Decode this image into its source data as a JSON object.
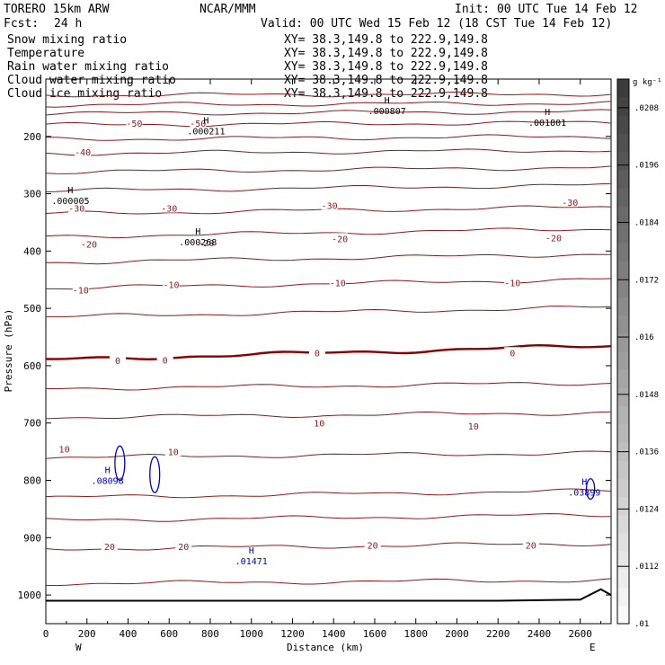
{
  "header": {
    "model": "TORERO   15km ARW",
    "org": "NCAR/MMM",
    "init": "Init: 00 UTC Tue 14 Feb 12",
    "fcst_label": "Fcst:",
    "fcst_value": "24 h",
    "valid": "Valid: 00 UTC Wed 15 Feb 12 (18 CST Tue 14 Feb 12)"
  },
  "fields": [
    {
      "name": "Snow mixing ratio",
      "xy": "XY=  38.3,149.8 to 222.9,149.8",
      "color": "#000000"
    },
    {
      "name": "Temperature",
      "xy": "XY=  38.3,149.8 to 222.9,149.8",
      "color": "#b00000"
    },
    {
      "name": "Rain water mixing ratio",
      "xy": "XY=  38.3,149.8 to 222.9,149.8",
      "color": "#d40000"
    },
    {
      "name": "Cloud water mixing ratio",
      "xy": "XY=  38.3,149.8 to 222.9,149.8",
      "color": "#0000c8"
    },
    {
      "name": "Cloud ice mixing ratio",
      "xy": "XY=  38.3,149.8 to 222.9,149.8",
      "color": "#000000"
    }
  ],
  "chart_data": {
    "type": "contour cross-section",
    "xlabel": "Distance (km)",
    "ylabel": "Pressure (hPa)",
    "xlim": [
      0,
      2750
    ],
    "ylim": [
      1050,
      100
    ],
    "x_ticks": [
      "0",
      "200",
      "400",
      "600",
      "800",
      "1000",
      "1200",
      "1400",
      "1600",
      "1800",
      "2000",
      "2200",
      "2400",
      "2600"
    ],
    "x_tick_values": [
      0,
      200,
      400,
      600,
      800,
      1000,
      1200,
      1400,
      1600,
      1800,
      2000,
      2200,
      2400,
      2600
    ],
    "y_ticks": [
      "200",
      "300",
      "400",
      "500",
      "600",
      "700",
      "800",
      "900",
      "1000"
    ],
    "y_tick_values": [
      200,
      300,
      400,
      500,
      600,
      700,
      800,
      900,
      1000
    ],
    "endpoints": {
      "left": "W",
      "right": "E"
    },
    "temperature_contours": [
      {
        "p": 128,
        "slope": -2
      },
      {
        "p": 145,
        "slope": -3
      },
      {
        "p": 160,
        "slope": -3
      },
      {
        "p": 180,
        "slope": -4,
        "label": "-50"
      },
      {
        "p": 205,
        "slope": -5
      },
      {
        "p": 230,
        "slope": -6,
        "label": "-40"
      },
      {
        "p": 262,
        "slope": -8
      },
      {
        "p": 295,
        "slope": -10,
        "label": "-30"
      },
      {
        "p": 335,
        "slope": -12
      },
      {
        "p": 375,
        "slope": -14,
        "label": "-20"
      },
      {
        "p": 420,
        "slope": -15
      },
      {
        "p": 465,
        "slope": -16,
        "label": "-10"
      },
      {
        "p": 515,
        "slope": -17
      },
      {
        "p": 590,
        "slope": -25,
        "label": "0",
        "bold": true
      },
      {
        "p": 640,
        "slope": -10
      },
      {
        "p": 690,
        "slope": -8,
        "label": "10"
      },
      {
        "p": 760,
        "slope": -8
      },
      {
        "p": 830,
        "slope": -12
      },
      {
        "p": 870,
        "slope": -10
      },
      {
        "p": 920,
        "slope": -10,
        "label": "20"
      },
      {
        "p": 980,
        "slope": -6
      }
    ],
    "temperature_labels": [
      {
        "text": "-50",
        "x": 430,
        "p": 177
      },
      {
        "text": "-50",
        "x": 740,
        "p": 177
      },
      {
        "text": "-40",
        "x": 180,
        "p": 227
      },
      {
        "text": "-30",
        "x": 150,
        "p": 325
      },
      {
        "text": "-30",
        "x": 600,
        "p": 325
      },
      {
        "text": "-30",
        "x": 1380,
        "p": 320
      },
      {
        "text": "-30",
        "x": 2550,
        "p": 315
      },
      {
        "text": "-20",
        "x": 210,
        "p": 388
      },
      {
        "text": "-20",
        "x": 780,
        "p": 385
      },
      {
        "text": "-20",
        "x": 1430,
        "p": 378
      },
      {
        "text": "-20",
        "x": 2470,
        "p": 377
      },
      {
        "text": "-10",
        "x": 170,
        "p": 468
      },
      {
        "text": "-10",
        "x": 610,
        "p": 458
      },
      {
        "text": "-10",
        "x": 1420,
        "p": 455
      },
      {
        "text": "-10",
        "x": 2270,
        "p": 455
      },
      {
        "text": "0",
        "x": 350,
        "p": 591
      },
      {
        "text": "0",
        "x": 580,
        "p": 590
      },
      {
        "text": "0",
        "x": 1320,
        "p": 577
      },
      {
        "text": "0",
        "x": 2270,
        "p": 577
      },
      {
        "text": "10",
        "x": 90,
        "p": 745
      },
      {
        "text": "10",
        "x": 620,
        "p": 750
      },
      {
        "text": "10",
        "x": 1330,
        "p": 700
      },
      {
        "text": "10",
        "x": 2080,
        "p": 705
      },
      {
        "text": "20",
        "x": 310,
        "p": 915
      },
      {
        "text": "20",
        "x": 670,
        "p": 915
      },
      {
        "text": "20",
        "x": 1590,
        "p": 913
      },
      {
        "text": "20",
        "x": 2360,
        "p": 913
      }
    ],
    "extremes": [
      {
        "mark": "H",
        "value": ".000005",
        "x": 120,
        "p": 312,
        "color": "#000000"
      },
      {
        "mark": "H",
        "value": ".000211",
        "x": 780,
        "p": 190,
        "color": "#000000"
      },
      {
        "mark": "H",
        "value": ".000268",
        "x": 740,
        "p": 384,
        "color": "#000000"
      },
      {
        "mark": "H",
        "value": ".000807",
        "x": 1660,
        "p": 155,
        "color": "#000000"
      },
      {
        "mark": "H",
        "value": ".001801",
        "x": 2440,
        "p": 175,
        "color": "#000000"
      },
      {
        "mark": "H",
        "value": ".08098",
        "x": 300,
        "p": 800,
        "color": "#0000c8"
      },
      {
        "mark": "H",
        "value": ".03899",
        "x": 2620,
        "p": 820,
        "color": "#0000c8"
      },
      {
        "mark": "H",
        "value": ".01471",
        "x": 1000,
        "p": 940,
        "color": "#0000c8"
      }
    ],
    "colorbar": {
      "unit": "g kg⁻¹",
      "labels": [
        ".0208",
        ".0196",
        ".0184",
        ".0172",
        ".016",
        ".0148",
        ".0136",
        ".0124",
        ".0112",
        ".01"
      ],
      "range": [
        0.01,
        0.0214
      ]
    }
  }
}
